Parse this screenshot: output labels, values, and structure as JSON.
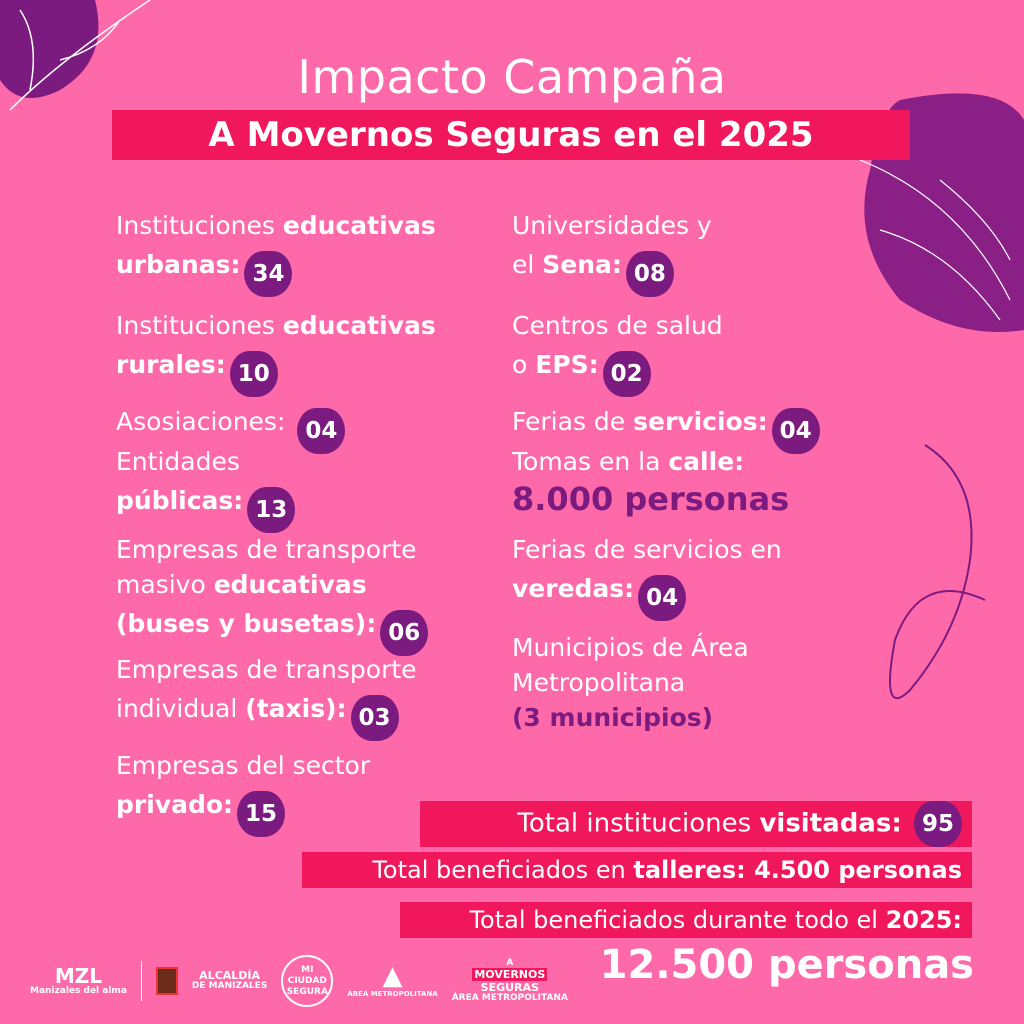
{
  "title": "Impacto Campaña",
  "subtitle": "A Movernos Seguras en el 2025",
  "colors": {
    "background": "#fe69aa",
    "accent_red": "#f0175c",
    "purple": "#7b1b80"
  },
  "left_items": [
    {
      "lines": [
        [
          {
            "t": "Instituciones "
          },
          {
            "t": "educativas",
            "b": true
          }
        ],
        [
          {
            "t": "urbanas:",
            "b": true
          }
        ]
      ],
      "value": "34"
    },
    {
      "lines": [
        [
          {
            "t": "Instituciones "
          },
          {
            "t": "educativas",
            "b": true
          }
        ],
        [
          {
            "t": "rurales:",
            "b": true
          }
        ]
      ],
      "value": "10"
    },
    {
      "lines": [
        [
          {
            "t": "Asosiaciones: "
          }
        ]
      ],
      "value": "04"
    },
    {
      "lines": [
        [
          {
            "t": "Entidades"
          }
        ],
        [
          {
            "t": "públicas:",
            "b": true
          }
        ]
      ],
      "value": "13"
    },
    {
      "lines": [
        [
          {
            "t": "Empresas de transporte"
          }
        ],
        [
          {
            "t": "masivo "
          },
          {
            "t": "educativas",
            "b": true
          }
        ],
        [
          {
            "t": "(buses y busetas):",
            "b": true
          }
        ]
      ],
      "value": "06"
    },
    {
      "lines": [
        [
          {
            "t": "Empresas de transporte"
          }
        ],
        [
          {
            "t": "individual "
          },
          {
            "t": "(taxis):",
            "b": true
          }
        ]
      ],
      "value": "03"
    },
    {
      "lines": [
        [
          {
            "t": "Empresas del sector"
          }
        ],
        [
          {
            "t": "privado:",
            "b": true
          }
        ]
      ],
      "value": "15"
    }
  ],
  "right_items": [
    {
      "lines": [
        [
          {
            "t": "Universidades y"
          }
        ],
        [
          {
            "t": "el "
          },
          {
            "t": "Sena:",
            "b": true
          }
        ]
      ],
      "value": "08"
    },
    {
      "lines": [
        [
          {
            "t": "Centros de salud"
          }
        ],
        [
          {
            "t": "o "
          },
          {
            "t": "EPS:",
            "b": true
          }
        ]
      ],
      "value": "02"
    },
    {
      "lines": [
        [
          {
            "t": "Ferias de "
          },
          {
            "t": "servicios:",
            "b": true
          }
        ]
      ],
      "value": "04"
    },
    {
      "lines": [
        [
          {
            "t": "Tomas en la "
          },
          {
            "t": "calle:",
            "b": true
          }
        ]
      ],
      "highlight": "8.000 personas"
    },
    {
      "lines": [
        [
          {
            "t": "Ferias de servicios en"
          }
        ],
        [
          {
            "t": "veredas:",
            "b": true
          }
        ]
      ],
      "value": "04"
    },
    {
      "lines": [
        [
          {
            "t": "Municipios de Área"
          }
        ],
        [
          {
            "t": "Metropolitana"
          }
        ]
      ],
      "note": "(3 municipios)"
    }
  ],
  "totals": [
    {
      "label": "Total instituciones ",
      "bold": "visitadas:",
      "value": "95"
    },
    {
      "label": "Total beneficiados en ",
      "bold": "talleres: 4.500 personas"
    },
    {
      "label": "Total beneficiados durante todo el ",
      "bold": "2025:"
    }
  ],
  "final_total": "12.500 personas",
  "logos": {
    "mzl": "MZL",
    "mzl_sub": "Manizales del alma",
    "alcaldia": "ALCALDÍA",
    "alcaldia_sub": "DE MANIZALES",
    "mi_ciudad": "MI CIUDAD",
    "mi_ciudad_sub": "SEGURA",
    "area": "ÁREA METROPOLITANA",
    "mov_a": "A",
    "mov_1": "MOVERNOS",
    "mov_2": "SEGURAS",
    "mov_3": "ÁREA METROPOLITANA"
  }
}
